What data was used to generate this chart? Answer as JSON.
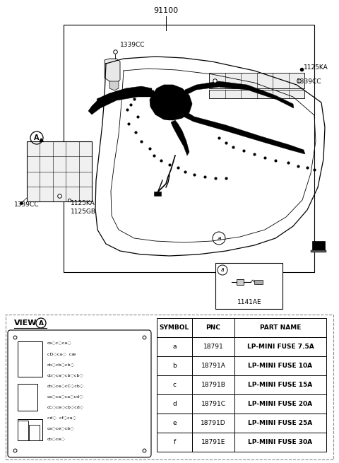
{
  "title": "91100",
  "bg_color": "#ffffff",
  "labels": {
    "top_center": "91100",
    "ul_bracket": "1339CC",
    "ur_label1": "1125KA",
    "ur_label2": "1339CC",
    "left_circ": "1339CC",
    "ll1": "1125KA",
    "ll2": "1125GB",
    "inset_lbl": "1141AE",
    "circle_a": "a"
  },
  "table_headers": [
    "SYMBOL",
    "PNC",
    "PART NAME"
  ],
  "table_rows": [
    [
      "a",
      "18791",
      "LP-MINI FUSE 7.5A"
    ],
    [
      "b",
      "18791A",
      "LP-MINI FUSE 10A"
    ],
    [
      "c",
      "18791B",
      "LP-MINI FUSE 15A"
    ],
    [
      "d",
      "18791C",
      "LP-MINI FUSE 20A"
    ],
    [
      "e",
      "18791D",
      "LP-MINI FUSE 25A"
    ],
    [
      "f",
      "18791E",
      "LP-MINI FUSE 30A"
    ]
  ],
  "panel_rows": [
    "ca◌c◌ca◌",
    "cD◌ca◌  c6",
    "cb◌cb◌cb◌",
    "cb◌ca◌cb◌cb◌",
    "cb◌ce◌cC◌cb◌",
    "ca◌ca◌ca◌cd◌",
    "cC◌ce◌cb◌cd◌",
    "cd◌   cf◌ca◌",
    "ca◌ce◌cb◌",
    "cb◌ce◌"
  ]
}
